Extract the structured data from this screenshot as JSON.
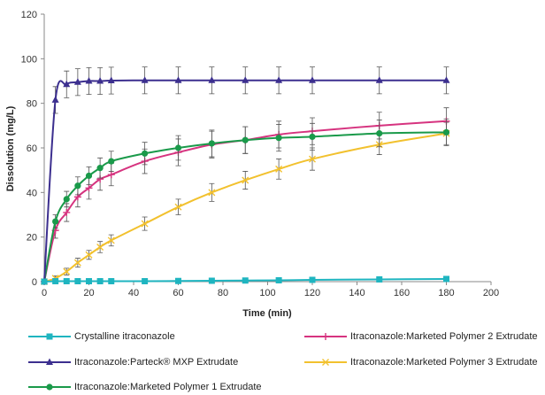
{
  "chart_data": {
    "type": "line",
    "xlabel": "Time (min)",
    "ylabel": "Dissolution (mg/L)",
    "xlim": [
      0,
      200
    ],
    "ylim": [
      0,
      120
    ],
    "x_ticks": [
      "0",
      "20",
      "40",
      "60",
      "80",
      "100",
      "120",
      "140",
      "160",
      "180",
      "200"
    ],
    "y_ticks": [
      "0",
      "20",
      "40",
      "60",
      "80",
      "100",
      "120"
    ],
    "grid": false,
    "legend_position": "bottom",
    "series": [
      {
        "name": "Crystalline itraconazole",
        "color": "#1fb5c0",
        "marker": "square",
        "x": [
          0,
          5,
          10,
          15,
          20,
          25,
          30,
          45,
          60,
          75,
          90,
          105,
          120,
          150,
          180
        ],
        "y": [
          0,
          0.2,
          0.2,
          0.2,
          0.2,
          0.2,
          0.2,
          0.2,
          0.3,
          0.4,
          0.5,
          0.6,
          0.8,
          1.0,
          1.2
        ],
        "err": [
          0,
          0.3,
          0.3,
          0.3,
          0.3,
          0.3,
          0.3,
          0.3,
          0.3,
          0.3,
          0.3,
          0.3,
          0.3,
          0.3,
          0.3
        ]
      },
      {
        "name": "Itraconazole:Parteck® MXP Extrudate",
        "color": "#3c2f8f",
        "marker": "triangle",
        "x": [
          0,
          5,
          10,
          15,
          20,
          25,
          30,
          45,
          60,
          75,
          90,
          105,
          120,
          150,
          180
        ],
        "y": [
          0,
          81.5,
          88.5,
          89.5,
          90,
          90,
          90.2,
          90.3,
          90.3,
          90.3,
          90.3,
          90.3,
          90.3,
          90.3,
          90.3
        ],
        "err": [
          0,
          6,
          6,
          6,
          6,
          6,
          6,
          6,
          6,
          6,
          6,
          6,
          6,
          6,
          6
        ]
      },
      {
        "name": "Itraconazole:Marketed Polymer 1 Extrudate",
        "color": "#1a9a4a",
        "marker": "circle",
        "x": [
          0,
          5,
          10,
          15,
          20,
          25,
          30,
          45,
          60,
          75,
          90,
          105,
          120,
          150,
          180
        ],
        "y": [
          0,
          27,
          37,
          43,
          47.5,
          51,
          54,
          57.5,
          60,
          62,
          63.5,
          64.5,
          65,
          66.5,
          67
        ],
        "err": [
          0,
          3,
          3.5,
          4,
          4,
          4.5,
          4.5,
          5,
          5.5,
          6,
          6,
          6,
          6,
          6,
          6
        ]
      },
      {
        "name": "Itraconazole:Marketed Polymer 2 Extrudate",
        "color": "#d6337f",
        "marker": "plus",
        "x": [
          0,
          5,
          10,
          15,
          20,
          25,
          30,
          45,
          60,
          75,
          90,
          105,
          120,
          150,
          180
        ],
        "y": [
          0,
          23,
          31,
          38,
          42,
          46,
          48,
          54,
          58,
          61.5,
          63.5,
          66,
          67.5,
          70,
          72
        ],
        "err": [
          0,
          3.5,
          4,
          4.5,
          5,
          5,
          5,
          5.5,
          6,
          6,
          6,
          6,
          6,
          6,
          6
        ]
      },
      {
        "name": "Itraconazole:Marketed Polymer 3 Extrudate",
        "color": "#f2c12e",
        "marker": "x",
        "x": [
          0,
          5,
          10,
          15,
          20,
          25,
          30,
          45,
          60,
          75,
          90,
          105,
          120,
          150,
          180
        ],
        "y": [
          0,
          1.5,
          4.5,
          8.5,
          12,
          15.5,
          18.5,
          26,
          33.5,
          40,
          45.5,
          50.5,
          55,
          61.5,
          66.5
        ],
        "err": [
          0,
          1,
          1.5,
          2,
          2,
          2.5,
          2.5,
          3,
          3.5,
          4,
          4,
          4.5,
          5,
          4.5,
          5
        ]
      }
    ]
  }
}
